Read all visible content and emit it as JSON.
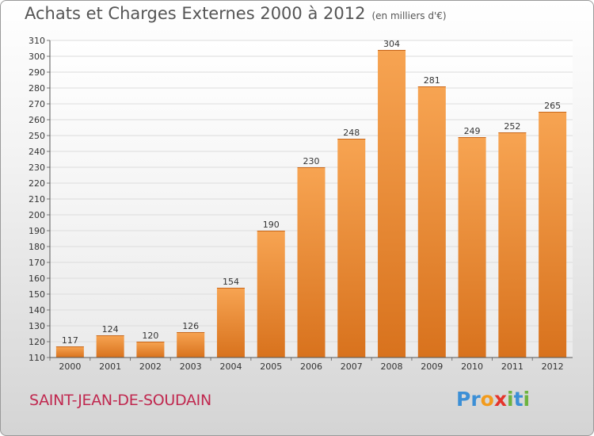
{
  "header": {
    "title": "Achats et Charges Externes 2000 à 2012",
    "subtitle": "(en milliers d'€)"
  },
  "footer": {
    "commune": "SAINT-JEAN-DE-SOUDAIN",
    "logo_letters": [
      "P",
      "r",
      "o",
      "x",
      "i",
      "t",
      "i"
    ],
    "logo_colors": [
      "#3c8fd6",
      "#3c8fd6",
      "#f29b1d",
      "#e4342b",
      "#6db33f",
      "#3c8fd6",
      "#6db33f"
    ]
  },
  "chart_data": {
    "type": "bar",
    "title": "Achats et Charges Externes 2000 à 2012",
    "subtitle": "(en milliers d'€)",
    "categories": [
      "2000",
      "2001",
      "2002",
      "2003",
      "2004",
      "2005",
      "2006",
      "2007",
      "2008",
      "2009",
      "2010",
      "2011",
      "2012"
    ],
    "values": [
      117,
      124,
      120,
      126,
      154,
      190,
      230,
      248,
      304,
      281,
      249,
      252,
      265
    ],
    "ylim": [
      110,
      310
    ],
    "yticks": [
      110,
      120,
      130,
      140,
      150,
      160,
      170,
      180,
      190,
      200,
      210,
      220,
      230,
      240,
      250,
      260,
      270,
      280,
      290,
      300,
      310
    ],
    "grid": true,
    "bar_color_top": "#f7a452",
    "bar_color_bottom": "#d8721d",
    "xlabel": "",
    "ylabel": ""
  }
}
